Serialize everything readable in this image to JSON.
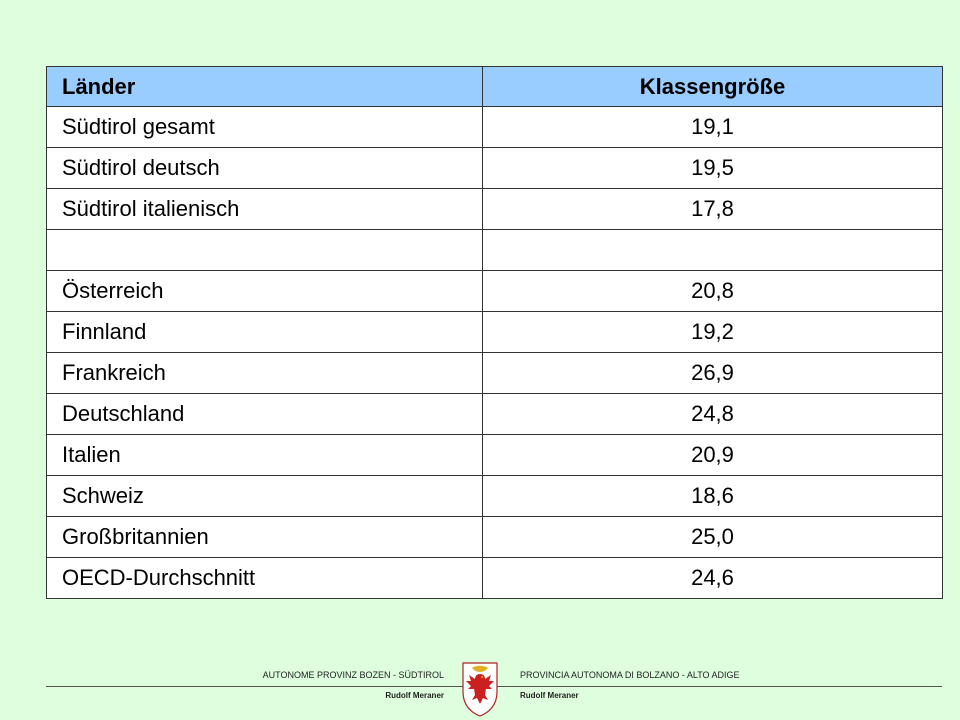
{
  "table": {
    "headers": [
      "Länder",
      "Klassengröße"
    ],
    "rows": [
      {
        "name": "Südtirol gesamt",
        "value": "19,1"
      },
      {
        "name": "Südtirol deutsch",
        "value": "19,5"
      },
      {
        "name": "Südtirol italienisch",
        "value": "17,8"
      },
      {
        "name": "",
        "value": ""
      },
      {
        "name": "Österreich",
        "value": "20,8"
      },
      {
        "name": "Finnland",
        "value": "19,2"
      },
      {
        "name": "Frankreich",
        "value": "26,9"
      },
      {
        "name": "Deutschland",
        "value": "24,8"
      },
      {
        "name": "Italien",
        "value": "20,9"
      },
      {
        "name": "Schweiz",
        "value": "18,6"
      },
      {
        "name": "Großbritannien",
        "value": "25,0"
      },
      {
        "name": "OECD-Durchschnitt",
        "value": "24,6"
      }
    ]
  },
  "footer": {
    "left_org": "AUTONOME PROVINZ BOZEN - SÜDTIROL",
    "right_org": "PROVINCIA AUTONOMA DI BOLZANO - ALTO ADIGE",
    "left_author": "Rudolf Meraner",
    "right_author": "Rudolf Meraner",
    "crest_icon": "coat-of-arms-eagle-icon"
  },
  "colors": {
    "background": "#ddffdd",
    "header": "#99ccff"
  }
}
